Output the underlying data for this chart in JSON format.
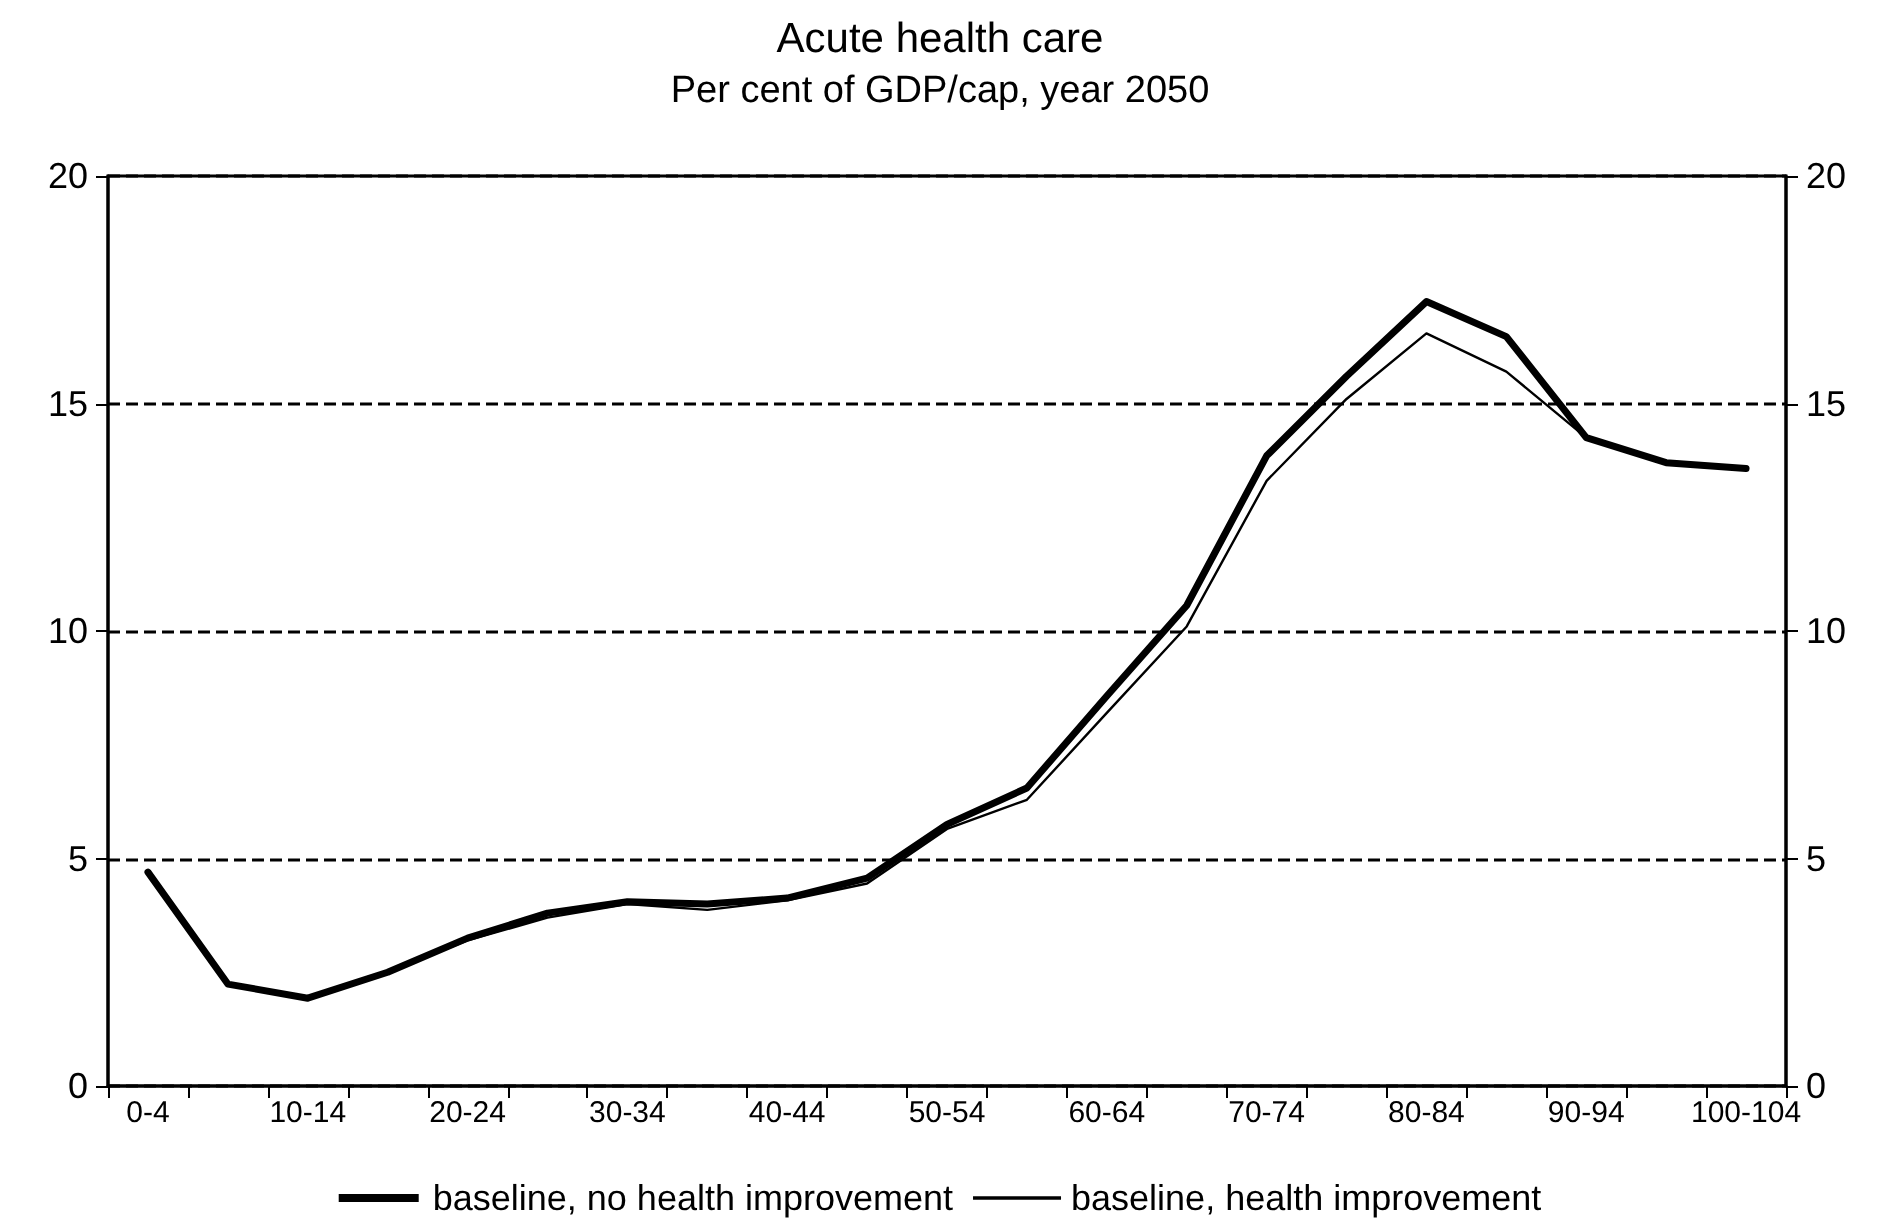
{
  "chart_data": {
    "type": "line",
    "title": "Acute health care",
    "subtitle": "Per cent of GDP/cap, year 2050",
    "categories": [
      "0-4",
      null,
      "10-14",
      null,
      "20-24",
      null,
      "30-34",
      null,
      "40-44",
      null,
      "50-54",
      null,
      "60-64",
      null,
      "70-74",
      null,
      "80-84",
      null,
      "90-94",
      null,
      "100-104"
    ],
    "series": [
      {
        "name": "baseline, no health improvement",
        "color": "#000000",
        "values": [
          4.7,
          2.24,
          1.93,
          2.5,
          3.25,
          3.8,
          4.05,
          4.0,
          4.13,
          4.57,
          5.75,
          6.55,
          8.57,
          10.56,
          13.85,
          15.6,
          17.24,
          16.47,
          14.25,
          13.7,
          13.57
        ]
      },
      {
        "name": "baseline, health improvement",
        "color": "#000000",
        "values": [
          4.7,
          2.24,
          1.93,
          2.5,
          3.2,
          3.7,
          4.0,
          3.87,
          4.08,
          4.45,
          5.65,
          6.29,
          8.2,
          10.1,
          13.3,
          15.1,
          16.54,
          15.7,
          14.25,
          13.7,
          13.57
        ]
      }
    ],
    "ylim": [
      0,
      20
    ],
    "yticks": [
      0,
      5,
      10,
      15,
      20
    ],
    "y2lim": [
      0,
      20
    ],
    "y2ticks": [
      0,
      5,
      10,
      15,
      20
    ],
    "grid": "y",
    "legend": "bottom",
    "marker": "none",
    "line_style": "solid"
  }
}
